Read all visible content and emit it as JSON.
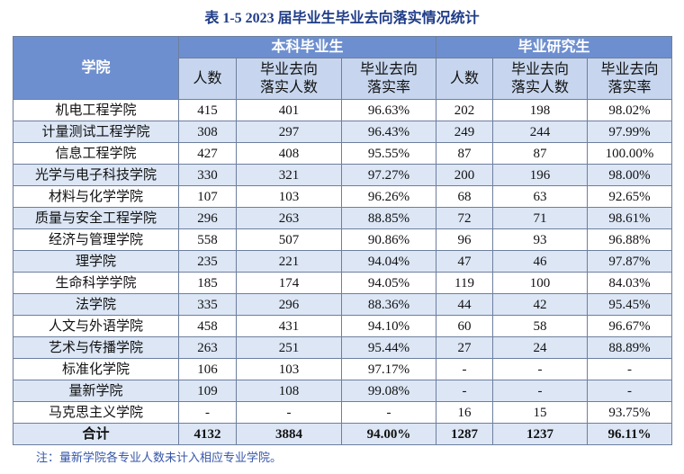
{
  "title": "表 1-5  2023 届毕业生毕业去向落实情况统计",
  "table": {
    "header": {
      "college": "学院",
      "groups": [
        "本科毕业生",
        "毕业研究生"
      ],
      "columns": [
        [
          "人数"
        ],
        [
          "毕业去向",
          "落实人数"
        ],
        [
          "毕业去向",
          "落实率"
        ],
        [
          "人数"
        ],
        [
          "毕业去向",
          "落实人数"
        ],
        [
          "毕业去向",
          "落实率"
        ]
      ]
    },
    "rows": [
      [
        "机电工程学院",
        "415",
        "401",
        "96.63%",
        "202",
        "198",
        "98.02%"
      ],
      [
        "计量测试工程学院",
        "308",
        "297",
        "96.43%",
        "249",
        "244",
        "97.99%"
      ],
      [
        "信息工程学院",
        "427",
        "408",
        "95.55%",
        "87",
        "87",
        "100.00%"
      ],
      [
        "光学与电子科技学院",
        "330",
        "321",
        "97.27%",
        "200",
        "196",
        "98.00%"
      ],
      [
        "材料与化学学院",
        "107",
        "103",
        "96.26%",
        "68",
        "63",
        "92.65%"
      ],
      [
        "质量与安全工程学院",
        "296",
        "263",
        "88.85%",
        "72",
        "71",
        "98.61%"
      ],
      [
        "经济与管理学院",
        "558",
        "507",
        "90.86%",
        "96",
        "93",
        "96.88%"
      ],
      [
        "理学院",
        "235",
        "221",
        "94.04%",
        "47",
        "46",
        "97.87%"
      ],
      [
        "生命科学学院",
        "185",
        "174",
        "94.05%",
        "119",
        "100",
        "84.03%"
      ],
      [
        "法学院",
        "335",
        "296",
        "88.36%",
        "44",
        "42",
        "95.45%"
      ],
      [
        "人文与外语学院",
        "458",
        "431",
        "94.10%",
        "60",
        "58",
        "96.67%"
      ],
      [
        "艺术与传播学院",
        "263",
        "251",
        "95.44%",
        "27",
        "24",
        "88.89%"
      ],
      [
        "标准化学院",
        "106",
        "103",
        "97.17%",
        "-",
        "-",
        "-"
      ],
      [
        "量新学院",
        "109",
        "108",
        "99.08%",
        "-",
        "-",
        "-"
      ],
      [
        "马克思主义学院",
        "-",
        "-",
        "-",
        "16",
        "15",
        "93.75%"
      ]
    ],
    "total": [
      "合计",
      "4132",
      "3884",
      "94.00%",
      "1287",
      "1237",
      "96.11%"
    ]
  },
  "note": "注：量新学院各专业人数未计入相应专业学院。"
}
